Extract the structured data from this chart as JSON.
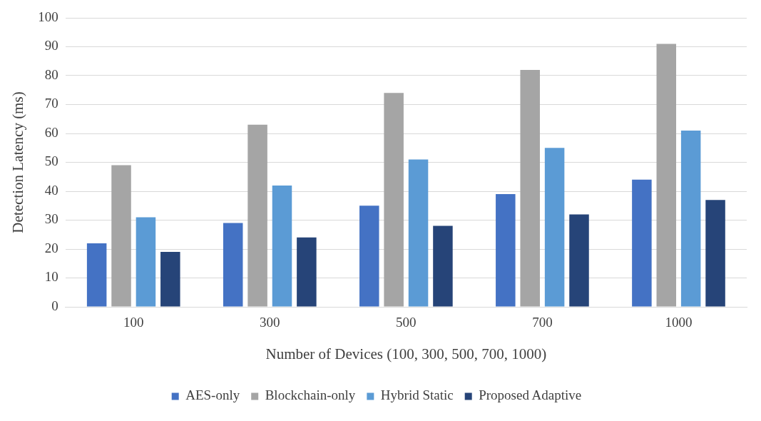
{
  "chart_data": {
    "type": "bar",
    "xlabel": "Number of Devices (100, 300, 500, 700, 1000)",
    "ylabel": "Detection Latency (ms)",
    "categories": [
      "100",
      "300",
      "500",
      "700",
      "1000"
    ],
    "series": [
      {
        "name": "AES-only",
        "color": "#4472c4",
        "values": [
          22,
          29,
          35,
          39,
          44
        ]
      },
      {
        "name": "Blockchain-only",
        "color": "#a5a5a5",
        "values": [
          49,
          63,
          74,
          82,
          91
        ]
      },
      {
        "name": "Hybrid Static",
        "color": "#5b9bd5",
        "values": [
          31,
          42,
          51,
          55,
          61
        ]
      },
      {
        "name": "Proposed Adaptive",
        "color": "#264478",
        "values": [
          19,
          24,
          28,
          32,
          37
        ]
      }
    ],
    "ylim": [
      0,
      100
    ],
    "yticks": [
      0,
      10,
      20,
      30,
      40,
      50,
      60,
      70,
      80,
      90,
      100
    ],
    "grid": "y",
    "legend": "bottom"
  }
}
